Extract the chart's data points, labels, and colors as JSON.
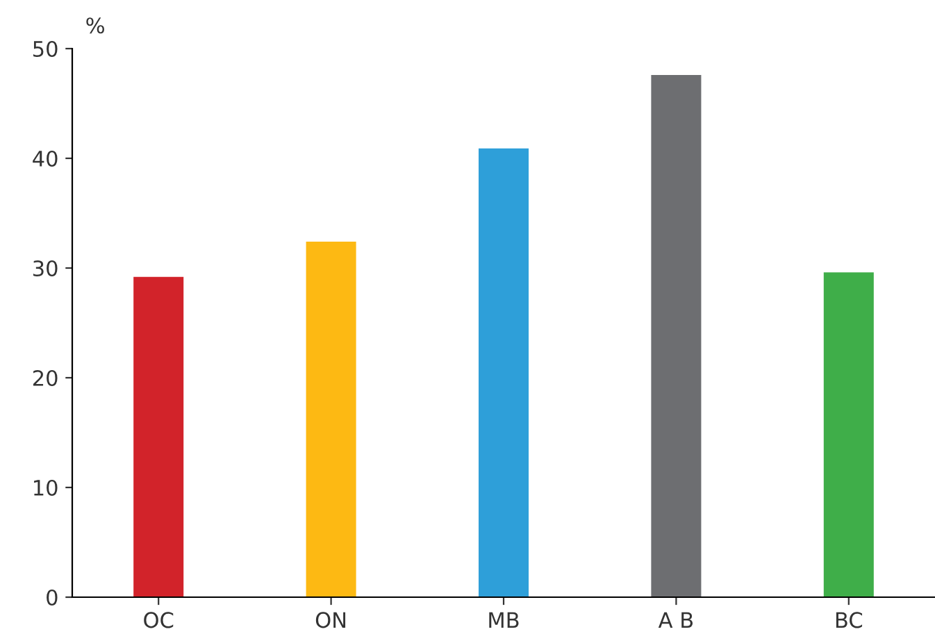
{
  "chart_data": {
    "type": "bar",
    "ylabel": "%",
    "categories": [
      "OC",
      "ON",
      "MB",
      "A B",
      "BC"
    ],
    "values": [
      29.2,
      32.4,
      40.9,
      47.6,
      29.6
    ],
    "colors": [
      "#d2232a",
      "#fdb913",
      "#2e9fd9",
      "#6d6e71",
      "#3fae49"
    ],
    "ylim": [
      0,
      50
    ],
    "yticks": [
      0,
      10,
      20,
      30,
      40,
      50
    ],
    "grid": false,
    "legend": false
  }
}
